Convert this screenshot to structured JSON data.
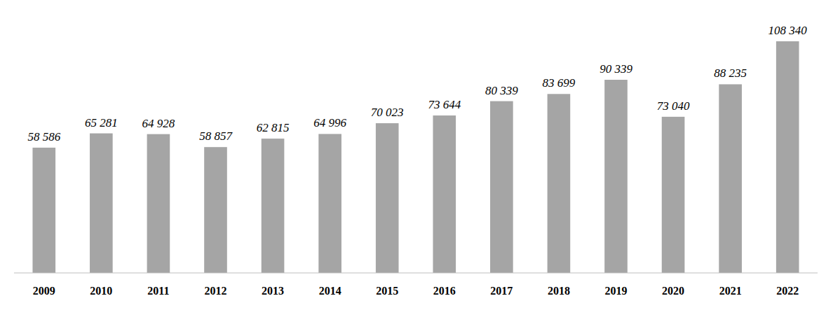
{
  "chart_data": {
    "type": "bar",
    "categories": [
      "2009",
      "2010",
      "2011",
      "2012",
      "2013",
      "2014",
      "2015",
      "2016",
      "2017",
      "2018",
      "2019",
      "2020",
      "2021",
      "2022"
    ],
    "values": [
      58586,
      65281,
      64928,
      58857,
      62815,
      64996,
      70023,
      73644,
      80339,
      83699,
      90339,
      73040,
      88235,
      108340
    ],
    "value_labels": [
      "58 586",
      "65 281",
      "64 928",
      "58 857",
      "62 815",
      "64 996",
      "70 023",
      "73 644",
      "80 339",
      "83 699",
      "90 339",
      "73 040",
      "88 235",
      "108 340"
    ],
    "color": "#a5a5a5",
    "ylim": [
      0,
      120000
    ],
    "grid": false,
    "data_labels": true,
    "tick_labels": "x"
  }
}
